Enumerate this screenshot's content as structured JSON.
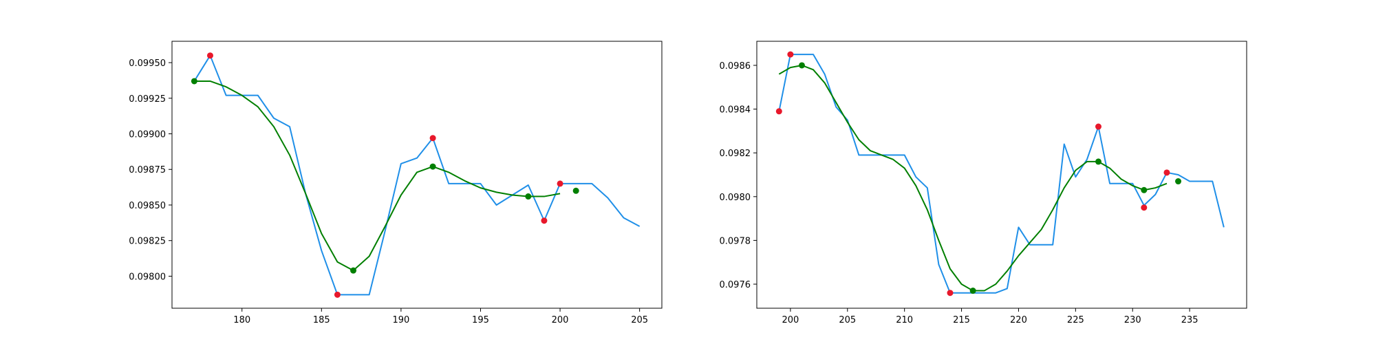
{
  "chart_data": [
    {
      "type": "line",
      "title": "",
      "xlabel": "",
      "ylabel": "",
      "xlim": [
        175.6,
        206.4
      ],
      "ylim": [
        0.097775,
        0.09965
      ],
      "xticks": [
        180,
        185,
        190,
        195,
        200,
        205
      ],
      "yticks": [
        0.098,
        0.09825,
        0.0985,
        0.09875,
        0.099,
        0.09925,
        0.0995
      ],
      "ytick_labels": [
        "0.09800",
        "0.09825",
        "0.09850",
        "0.09875",
        "0.09900",
        "0.09925",
        "0.09950"
      ],
      "grid": false,
      "series": [
        {
          "type": "line",
          "color": "#1f8fe8",
          "x": [
            177,
            178,
            179,
            180,
            181,
            182,
            183,
            184,
            185,
            186,
            187,
            188,
            189,
            190,
            191,
            192,
            193,
            194,
            195,
            196,
            197,
            198,
            199,
            200,
            201,
            202,
            203,
            204,
            205
          ],
          "y": [
            0.09937,
            0.09955,
            0.09927,
            0.09927,
            0.09927,
            0.09911,
            0.09905,
            0.09858,
            0.09818,
            0.09787,
            0.09787,
            0.09787,
            0.09832,
            0.09879,
            0.09883,
            0.09897,
            0.09865,
            0.09865,
            0.09865,
            0.0985,
            0.09857,
            0.09864,
            0.09839,
            0.09865,
            0.09865,
            0.09865,
            0.09855,
            0.09841,
            0.09835
          ]
        },
        {
          "type": "line",
          "color": "#007f00",
          "x": [
            177,
            178,
            179,
            180,
            181,
            182,
            183,
            184,
            185,
            186,
            187,
            188,
            189,
            190,
            191,
            192,
            193,
            194,
            195,
            196,
            197,
            198,
            199,
            200
          ],
          "y": [
            0.09937,
            0.09937,
            0.09933,
            0.09927,
            0.09919,
            0.09905,
            0.09885,
            0.09858,
            0.0983,
            0.0981,
            0.09804,
            0.09814,
            0.09835,
            0.09857,
            0.09873,
            0.09877,
            0.09873,
            0.09867,
            0.09862,
            0.09859,
            0.09857,
            0.09856,
            0.09856,
            0.09858
          ]
        },
        {
          "type": "scatter",
          "color": "#e8182b",
          "x": [
            178,
            186,
            192,
            199,
            200
          ],
          "y": [
            0.09955,
            0.09787,
            0.09897,
            0.09839,
            0.09865
          ]
        },
        {
          "type": "scatter",
          "color": "#007f00",
          "x": [
            177,
            187,
            192,
            198,
            201
          ],
          "y": [
            0.09937,
            0.09804,
            0.09877,
            0.09856,
            0.0986
          ]
        }
      ]
    },
    {
      "type": "line",
      "title": "",
      "xlabel": "",
      "ylabel": "",
      "xlim": [
        197.05,
        240.0
      ],
      "ylim": [
        0.09749,
        0.09871
      ],
      "xticks": [
        200,
        205,
        210,
        215,
        220,
        225,
        230,
        235
      ],
      "yticks": [
        0.0976,
        0.0978,
        0.098,
        0.0982,
        0.0984,
        0.0986
      ],
      "ytick_labels": [
        "0.0976",
        "0.0978",
        "0.0980",
        "0.0982",
        "0.0984",
        "0.0986"
      ],
      "grid": false,
      "series": [
        {
          "type": "line",
          "color": "#1f8fe8",
          "x": [
            199,
            200,
            201,
            202,
            203,
            204,
            205,
            206,
            207,
            208,
            209,
            210,
            211,
            212,
            213,
            214,
            215,
            216,
            217,
            218,
            219,
            220,
            221,
            222,
            223,
            224,
            225,
            226,
            227,
            228,
            229,
            230,
            231,
            232,
            233,
            234,
            235,
            236,
            237,
            238
          ],
          "y": [
            0.09839,
            0.09865,
            0.09865,
            0.09865,
            0.09856,
            0.09841,
            0.09835,
            0.09819,
            0.09819,
            0.09819,
            0.09819,
            0.09819,
            0.09809,
            0.09804,
            0.09769,
            0.09756,
            0.09756,
            0.09756,
            0.09756,
            0.09756,
            0.09758,
            0.09786,
            0.09778,
            0.09778,
            0.09778,
            0.09824,
            0.09809,
            0.09817,
            0.09832,
            0.09806,
            0.09806,
            0.09806,
            0.09796,
            0.09801,
            0.09811,
            0.0981,
            0.09807,
            0.09807,
            0.09807,
            0.09786
          ]
        },
        {
          "type": "line",
          "color": "#007f00",
          "x": [
            199,
            200,
            201,
            202,
            203,
            204,
            205,
            206,
            207,
            208,
            209,
            210,
            211,
            212,
            213,
            214,
            215,
            216,
            217,
            218,
            219,
            220,
            221,
            222,
            223,
            224,
            225,
            226,
            227,
            228,
            229,
            230,
            231,
            232,
            233
          ],
          "y": [
            0.09856,
            0.09859,
            0.0986,
            0.09858,
            0.09852,
            0.09843,
            0.09834,
            0.09826,
            0.09821,
            0.09819,
            0.09817,
            0.09813,
            0.09805,
            0.09794,
            0.0978,
            0.09767,
            0.0976,
            0.09757,
            0.09757,
            0.0976,
            0.09766,
            0.09773,
            0.09779,
            0.09785,
            0.09794,
            0.09804,
            0.09812,
            0.09816,
            0.09816,
            0.09813,
            0.09808,
            0.09805,
            0.09803,
            0.09804,
            0.09806
          ]
        },
        {
          "type": "scatter",
          "color": "#e8182b",
          "x": [
            199,
            200,
            214,
            227,
            231,
            233
          ],
          "y": [
            0.09839,
            0.09865,
            0.09756,
            0.09832,
            0.09795,
            0.09811
          ]
        },
        {
          "type": "scatter",
          "color": "#007f00",
          "x": [
            201,
            216,
            227,
            231,
            234
          ],
          "y": [
            0.0986,
            0.09757,
            0.09816,
            0.09803,
            0.09807
          ]
        }
      ]
    }
  ]
}
